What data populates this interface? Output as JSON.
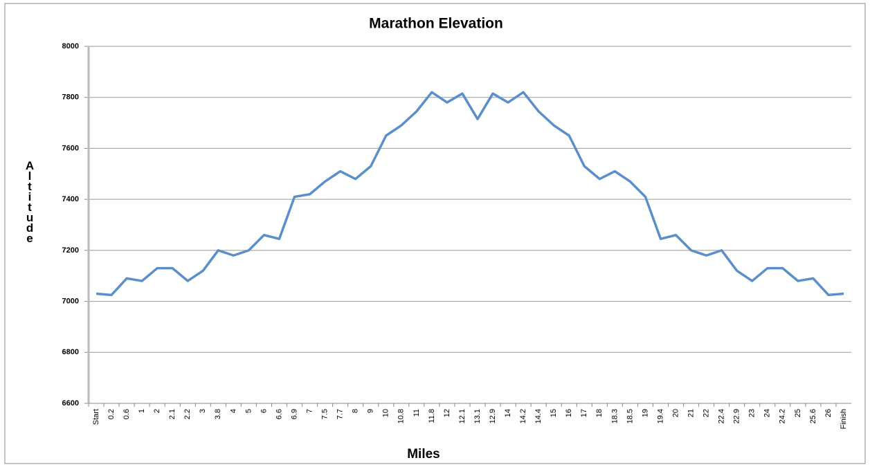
{
  "chart_data": {
    "type": "line",
    "title": "Marathon Elevation",
    "x_label": "Miles",
    "y_label": "Altitude",
    "categories": [
      "Start",
      "0.2",
      "0.6",
      "1",
      "2",
      "2.1",
      "2.2",
      "3",
      "3.8",
      "4",
      "5",
      "6",
      "6.6",
      "6.9",
      "7",
      "7.5",
      "7.7",
      "8",
      "9",
      "10",
      "10.8",
      "11",
      "11.8",
      "12",
      "12.1",
      "13.1",
      "12.9",
      "14",
      "14.2",
      "14.4",
      "15",
      "16",
      "17",
      "18",
      "18.3",
      "18.5",
      "19",
      "19.4",
      "20",
      "21",
      "22",
      "22.4",
      "22.9",
      "23",
      "24",
      "24.2",
      "25",
      "25.6",
      "26",
      "Finish"
    ],
    "series": [
      {
        "name": "Altitude",
        "color": "#5b8fc9",
        "values": [
          7030,
          7025,
          7090,
          7080,
          7130,
          7130,
          7080,
          7120,
          7200,
          7180,
          7200,
          7260,
          7245,
          7410,
          7420,
          7470,
          7510,
          7480,
          7530,
          7650,
          7690,
          7745,
          7820,
          7780,
          7815,
          7715,
          7815,
          7780,
          7820,
          7745,
          7690,
          7650,
          7530,
          7480,
          7510,
          7470,
          7410,
          7245,
          7260,
          7200,
          7180,
          7200,
          7120,
          7080,
          7130,
          7130,
          7080,
          7090,
          7025,
          7030
        ]
      }
    ],
    "ylim": [
      6600,
      8000
    ],
    "yticks": [
      6600,
      6800,
      7000,
      7200,
      7400,
      7600,
      7800,
      8000
    ],
    "grid": true
  }
}
